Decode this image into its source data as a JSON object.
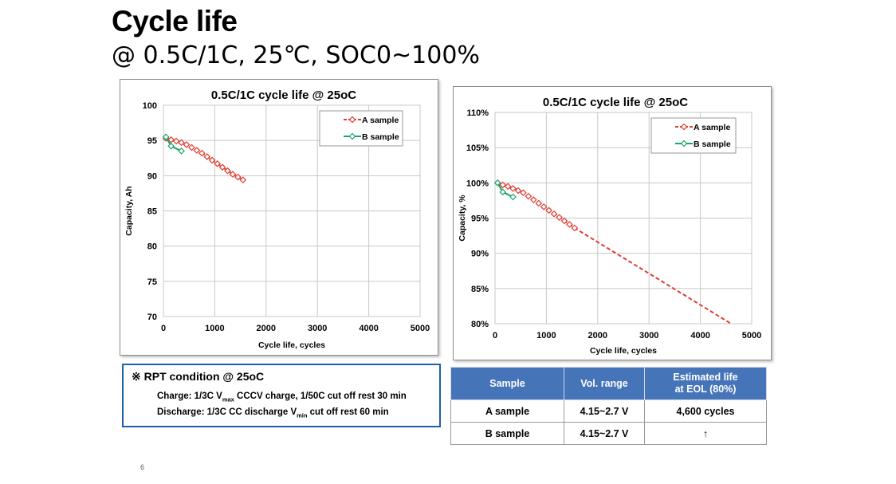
{
  "slide": {
    "title": "Cycle life",
    "subtitle": "@ 0.5C/1C, 25℃, SOC0~100%",
    "page_number": "6"
  },
  "chart_data": [
    {
      "type": "line",
      "title": "0.5C/1C cycle life @ 25oC",
      "xlabel": "Cycle life, cycles",
      "ylabel": "Capacity, Ah",
      "xlim": [
        0,
        5000
      ],
      "ylim": [
        70,
        100
      ],
      "x_ticks": [
        0,
        1000,
        2000,
        3000,
        4000,
        5000
      ],
      "y_ticks": [
        70,
        75,
        80,
        85,
        90,
        95,
        100
      ],
      "x_tick_labels": [
        "0",
        "1000",
        "2000",
        "3000",
        "4000",
        "5000"
      ],
      "y_tick_labels": [
        "70",
        "75",
        "80",
        "85",
        "90",
        "95",
        "100"
      ],
      "grid": true,
      "legend": "top-right",
      "series": [
        {
          "name": "A sample",
          "color": "#e03c31",
          "dashed": true,
          "x": [
            50,
            150,
            250,
            350,
            450,
            550,
            650,
            750,
            850,
            950,
            1050,
            1150,
            1250,
            1350,
            1450,
            1550
          ],
          "y": [
            95.3,
            95.1,
            94.9,
            94.7,
            94.4,
            94.0,
            93.6,
            93.2,
            92.7,
            92.2,
            91.7,
            91.2,
            90.7,
            90.2,
            89.8,
            89.4
          ]
        },
        {
          "name": "B sample",
          "color": "#1aa56a",
          "dashed": false,
          "x": [
            50,
            150,
            350
          ],
          "y": [
            95.5,
            94.2,
            93.5
          ]
        }
      ]
    },
    {
      "type": "line",
      "title": "0.5C/1C cycle life @ 25oC",
      "xlabel": "Cycle life, cycles",
      "ylabel": "Capacity, %",
      "xlim": [
        0,
        5000
      ],
      "ylim": [
        80,
        110
      ],
      "x_ticks": [
        0,
        1000,
        2000,
        3000,
        4000,
        5000
      ],
      "y_ticks": [
        80,
        85,
        90,
        95,
        100,
        105,
        110
      ],
      "x_tick_labels": [
        "0",
        "1000",
        "2000",
        "3000",
        "4000",
        "5000"
      ],
      "y_tick_labels": [
        "80%",
        "85%",
        "90%",
        "95%",
        "100%",
        "105%",
        "110%"
      ],
      "grid": true,
      "legend": "top-right",
      "series": [
        {
          "name": "A sample",
          "color": "#e03c31",
          "dashed": true,
          "markers_until": 1550,
          "x": [
            50,
            150,
            250,
            350,
            450,
            550,
            650,
            750,
            850,
            950,
            1050,
            1150,
            1250,
            1350,
            1450,
            1550,
            4600
          ],
          "y": [
            100,
            99.7,
            99.5,
            99.2,
            98.9,
            98.6,
            98.1,
            97.6,
            97.1,
            96.6,
            96.1,
            95.6,
            95.1,
            94.6,
            94.1,
            93.6,
            80
          ]
        },
        {
          "name": "B sample",
          "color": "#1aa56a",
          "dashed": false,
          "x": [
            50,
            150,
            350
          ],
          "y": [
            100,
            98.7,
            98.0
          ]
        }
      ]
    }
  ],
  "rpt": {
    "heading": "※ RPT condition @ 25oC",
    "charge_a": "Charge: 1/3C V",
    "charge_sub": "max",
    "charge_b": " CCCV charge, 1/50C cut off rest 30 min",
    "discharge_a": "Discharge: 1/3C CC discharge V",
    "discharge_sub": "min",
    "discharge_b": " cut off  rest 60 min"
  },
  "results_table": {
    "headers": [
      "Sample",
      "Vol. range",
      "Estimated life",
      "at EOL (80%)"
    ],
    "rows": [
      [
        "A sample",
        "4.15~2.7 V",
        "4,600 cycles"
      ],
      [
        "B sample",
        "4.15~2.7 V",
        "↑"
      ]
    ]
  }
}
